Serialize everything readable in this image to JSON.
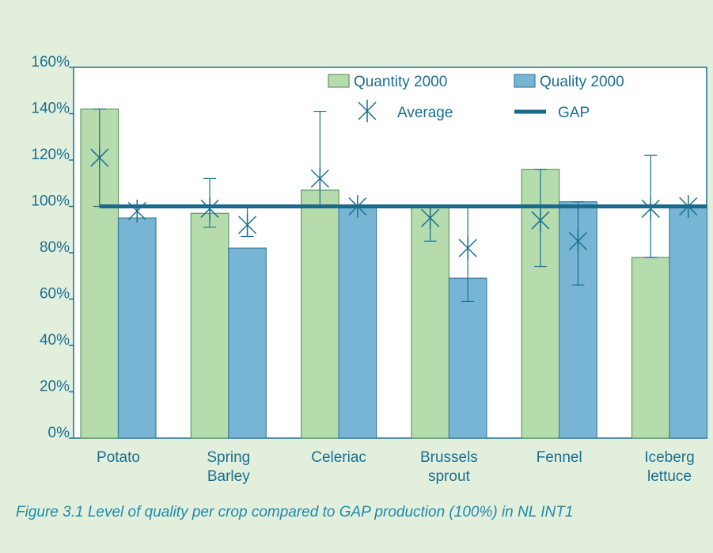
{
  "chart_data": {
    "type": "bar",
    "categories": [
      "Potato",
      "Spring Barley",
      "Celeriac",
      "Brussels sprout",
      "Fennel",
      "Iceberg lettuce"
    ],
    "series": [
      {
        "name": "Quantity 2000",
        "color": "#b6dcae",
        "edge": "#5f9a62",
        "values": [
          142,
          97,
          107,
          100,
          116,
          78
        ],
        "average": [
          121,
          99,
          112,
          95,
          94,
          99
        ],
        "low": [
          100,
          91,
          100,
          85,
          74,
          78
        ],
        "high": [
          142,
          112,
          141,
          100,
          116,
          122
        ]
      },
      {
        "name": "Quality 2000",
        "color": "#78b4d3",
        "edge": "#3a7ea2",
        "values": [
          95,
          82,
          100,
          69,
          102,
          100
        ],
        "average": [
          98,
          92,
          100,
          82,
          85,
          100
        ],
        "low": [
          null,
          87,
          null,
          59,
          66,
          null
        ],
        "high": [
          null,
          100,
          null,
          100,
          102,
          null
        ]
      }
    ],
    "average_name": "Average",
    "gap": {
      "name": "GAP",
      "value": 100,
      "color": "#1a6a8e"
    },
    "ylim": [
      0,
      160
    ],
    "yticks": [
      {
        "value": 0,
        "label": "0%"
      },
      {
        "value": 20,
        "label": "20%"
      },
      {
        "value": 40,
        "label": "40%"
      },
      {
        "value": 60,
        "label": "60%"
      },
      {
        "value": 80,
        "label": "80%"
      },
      {
        "value": 100,
        "label": "100%"
      },
      {
        "value": 120,
        "label": "120%"
      },
      {
        "value": 140,
        "label": "140%"
      },
      {
        "value": 160,
        "label": "160%"
      }
    ],
    "caption": "Figure 3.1 Level of quality per crop compared to GAP production (100%) in NL INT1"
  }
}
